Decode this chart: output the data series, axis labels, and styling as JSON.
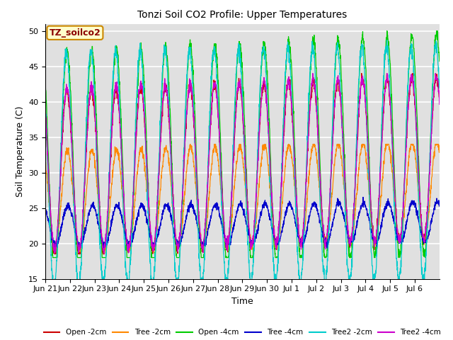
{
  "title": "Tonzi Soil CO2 Profile: Upper Temperatures",
  "xlabel": "Time",
  "ylabel": "Soil Temperature (C)",
  "ylim": [
    15,
    51
  ],
  "yticks": [
    15,
    20,
    25,
    30,
    35,
    40,
    45,
    50
  ],
  "annotation": "TZ_soilco2",
  "background_color": "#ffffff",
  "plot_bg_color": "#e0e0e0",
  "grid_color": "#ffffff",
  "series": {
    "Open -2cm": {
      "color": "#cc0000"
    },
    "Tree -2cm": {
      "color": "#ff8800"
    },
    "Open -4cm": {
      "color": "#00cc00"
    },
    "Tree -4cm": {
      "color": "#0000cc"
    },
    "Tree2 -2cm": {
      "color": "#00cccc"
    },
    "Tree2 -4cm": {
      "color": "#cc00cc"
    }
  },
  "xtick_labels": [
    "Jun 21",
    "Jun 22",
    "Jun 23",
    "Jun 24",
    "Jun 25",
    "Jun 26",
    "Jun 27",
    "Jun 28",
    "Jun 29",
    "Jun 30",
    "Jul 1",
    "Jul 2",
    "Jul 3",
    "Jul 4",
    "Jul 5",
    "Jul 6"
  ],
  "n_days": 16,
  "points_per_day": 144
}
